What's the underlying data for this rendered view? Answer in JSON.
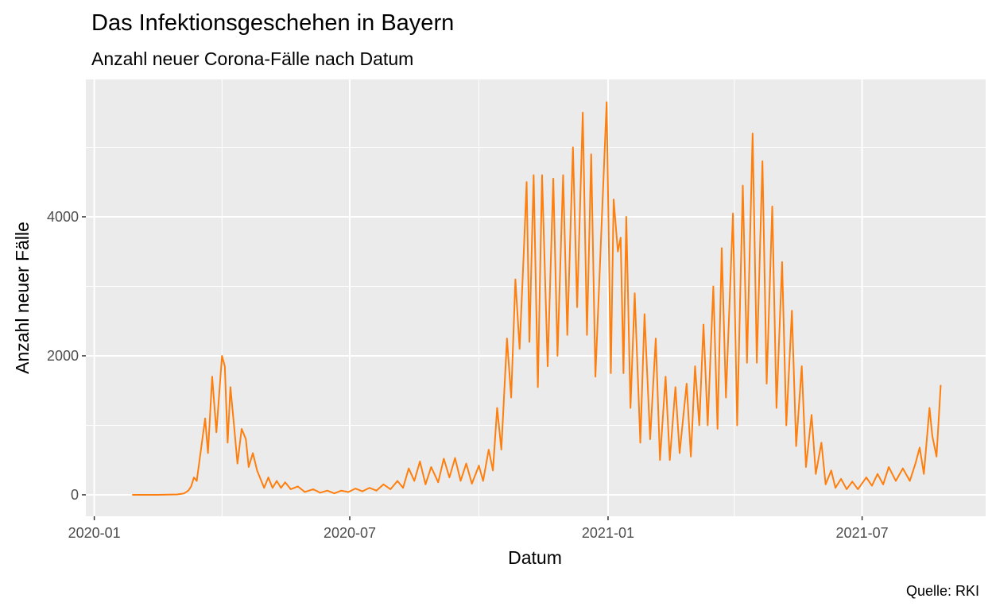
{
  "chart_data": {
    "type": "line",
    "title": "Das Infektionsgeschehen in Bayern",
    "subtitle": "Anzahl neuer Corona-Fälle nach Datum",
    "x_label": "Datum",
    "y_label": "Anzahl neuer Fälle",
    "caption": "Quelle: RKI",
    "xlim": [
      "2019-12-26",
      "2021-09-27"
    ],
    "xticks": [
      "2020-01",
      "2020-07",
      "2021-01",
      "2021-07"
    ],
    "x_minor_ticks": [
      "2020-04",
      "2020-10",
      "2021-04"
    ],
    "ylim": [
      -309,
      5977
    ],
    "yticks": [
      0,
      2000,
      4000
    ],
    "y_minor_ticks": [
      1000,
      3000,
      5000
    ],
    "grid": true,
    "series": [
      {
        "color": "#ff7f0e",
        "x": [
          "2020-01-28",
          "2020-02-15",
          "2020-02-29",
          "2020-03-05",
          "2020-03-08",
          "2020-03-10",
          "2020-03-12",
          "2020-03-14",
          "2020-03-18",
          "2020-03-20",
          "2020-03-22",
          "2020-03-25",
          "2020-03-28",
          "2020-04-01",
          "2020-04-03",
          "2020-04-05",
          "2020-04-07",
          "2020-04-10",
          "2020-04-12",
          "2020-04-15",
          "2020-04-18",
          "2020-04-20",
          "2020-04-23",
          "2020-04-26",
          "2020-04-28",
          "2020-05-01",
          "2020-05-04",
          "2020-05-07",
          "2020-05-10",
          "2020-05-13",
          "2020-05-16",
          "2020-05-20",
          "2020-05-25",
          "2020-05-30",
          "2020-06-05",
          "2020-06-10",
          "2020-06-15",
          "2020-06-20",
          "2020-06-25",
          "2020-06-30",
          "2020-07-05",
          "2020-07-10",
          "2020-07-15",
          "2020-07-20",
          "2020-07-25",
          "2020-07-30",
          "2020-08-04",
          "2020-08-08",
          "2020-08-12",
          "2020-08-16",
          "2020-08-20",
          "2020-08-24",
          "2020-08-28",
          "2020-09-02",
          "2020-09-06",
          "2020-09-10",
          "2020-09-14",
          "2020-09-18",
          "2020-09-22",
          "2020-09-26",
          "2020-10-01",
          "2020-10-04",
          "2020-10-08",
          "2020-10-11",
          "2020-10-14",
          "2020-10-17",
          "2020-10-21",
          "2020-10-24",
          "2020-10-27",
          "2020-10-30",
          "2020-11-02",
          "2020-11-04",
          "2020-11-06",
          "2020-11-09",
          "2020-11-12",
          "2020-11-15",
          "2020-11-19",
          "2020-11-23",
          "2020-11-26",
          "2020-11-30",
          "2020-12-03",
          "2020-12-07",
          "2020-12-10",
          "2020-12-14",
          "2020-12-17",
          "2020-12-20",
          "2020-12-23",
          "2020-12-31",
          "2021-01-03",
          "2021-01-05",
          "2021-01-08",
          "2021-01-10",
          "2021-01-12",
          "2021-01-14",
          "2021-01-17",
          "2021-01-20",
          "2021-01-24",
          "2021-01-27",
          "2021-01-31",
          "2021-02-04",
          "2021-02-07",
          "2021-02-11",
          "2021-02-14",
          "2021-02-18",
          "2021-02-21",
          "2021-02-26",
          "2021-03-01",
          "2021-03-04",
          "2021-03-07",
          "2021-03-10",
          "2021-03-13",
          "2021-03-17",
          "2021-03-20",
          "2021-03-23",
          "2021-03-26",
          "2021-03-31",
          "2021-04-03",
          "2021-04-07",
          "2021-04-10",
          "2021-04-14",
          "2021-04-17",
          "2021-04-21",
          "2021-04-24",
          "2021-04-28",
          "2021-05-01",
          "2021-05-05",
          "2021-05-08",
          "2021-05-12",
          "2021-05-15",
          "2021-05-19",
          "2021-05-22",
          "2021-05-26",
          "2021-05-29",
          "2021-06-02",
          "2021-06-05",
          "2021-06-09",
          "2021-06-12",
          "2021-06-16",
          "2021-06-20",
          "2021-06-24",
          "2021-06-28",
          "2021-07-04",
          "2021-07-08",
          "2021-07-12",
          "2021-07-16",
          "2021-07-20",
          "2021-07-25",
          "2021-07-30",
          "2021-08-04",
          "2021-08-08",
          "2021-08-11",
          "2021-08-14",
          "2021-08-18",
          "2021-08-20",
          "2021-08-23",
          "2021-08-26"
        ],
        "values": [
          0,
          0,
          5,
          20,
          60,
          120,
          250,
          200,
          800,
          1100,
          600,
          1700,
          900,
          2000,
          1850,
          750,
          1550,
          900,
          450,
          950,
          800,
          400,
          600,
          350,
          250,
          100,
          250,
          100,
          200,
          100,
          180,
          80,
          120,
          40,
          80,
          30,
          60,
          20,
          60,
          40,
          90,
          50,
          100,
          60,
          150,
          80,
          200,
          100,
          380,
          200,
          480,
          150,
          400,
          180,
          520,
          250,
          530,
          200,
          450,
          160,
          420,
          200,
          650,
          350,
          1250,
          650,
          2250,
          1400,
          3100,
          2100,
          3500,
          4500,
          2200,
          4600,
          1550,
          4600,
          1850,
          4550,
          2000,
          4600,
          2300,
          5000,
          2700,
          5500,
          2300,
          4900,
          1700,
          5650,
          1750,
          4250,
          3500,
          3700,
          1750,
          4000,
          1250,
          2900,
          750,
          2600,
          800,
          2250,
          500,
          1700,
          500,
          1550,
          600,
          1600,
          550,
          1850,
          1000,
          2450,
          1000,
          3000,
          950,
          3550,
          1400,
          4050,
          1000,
          4450,
          1900,
          5200,
          1900,
          4800,
          1600,
          4150,
          1250,
          3350,
          1000,
          2650,
          700,
          1850,
          400,
          1150,
          300,
          750,
          150,
          350,
          100,
          230,
          80,
          190,
          80,
          250,
          130,
          300,
          150,
          400,
          200,
          380,
          200,
          450,
          680,
          300,
          1250,
          850,
          550,
          1580
        ]
      }
    ]
  }
}
